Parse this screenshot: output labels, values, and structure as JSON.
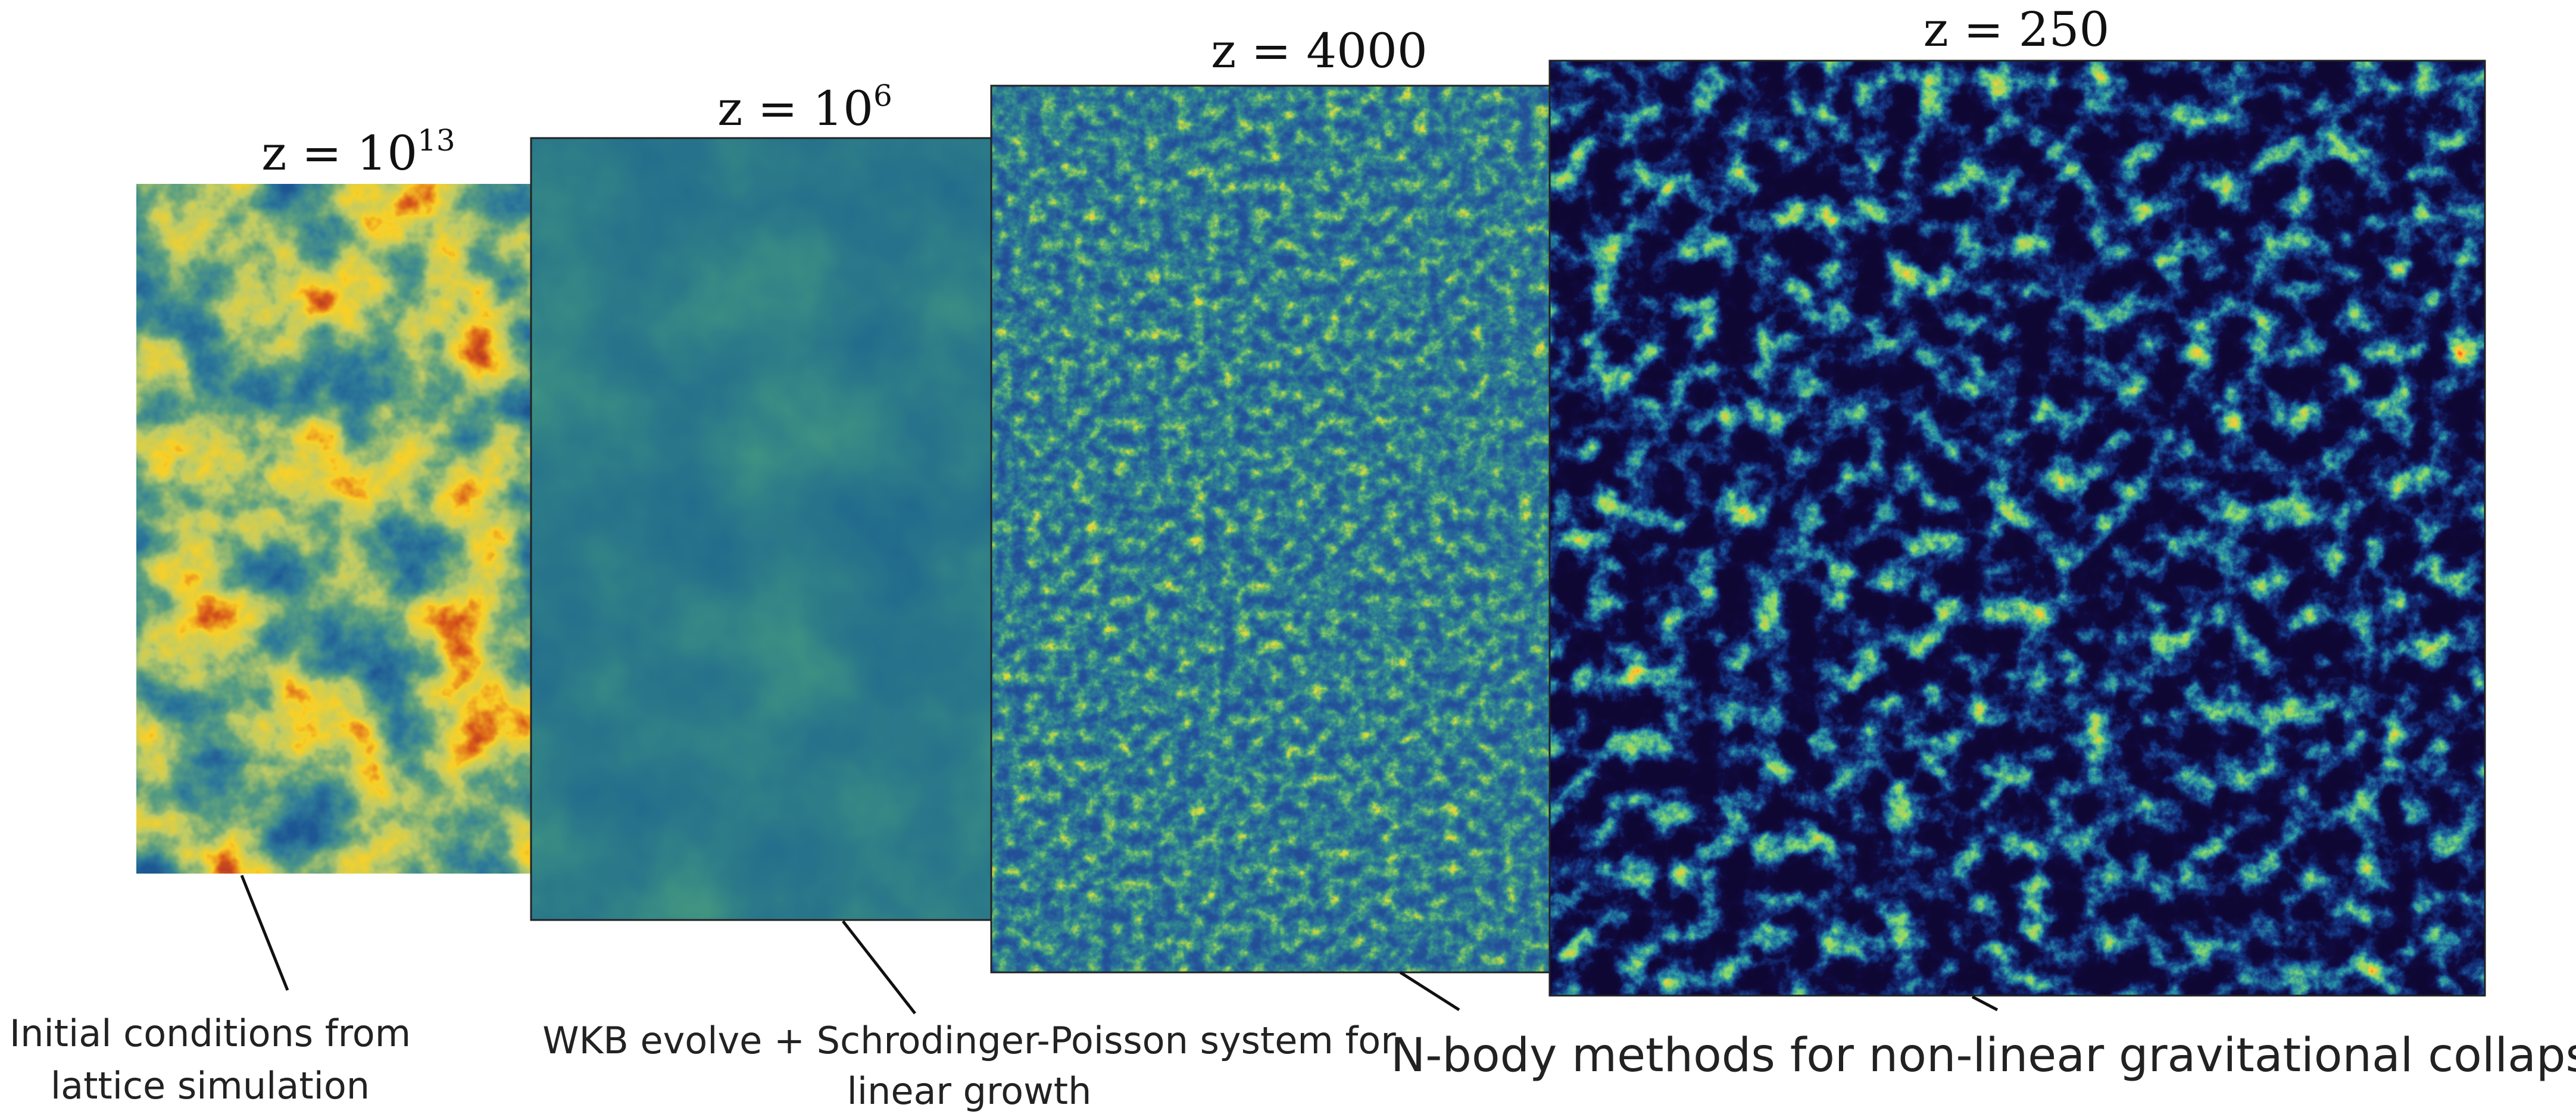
{
  "panels": [
    {
      "title": "z = 10",
      "title_superscript": "13"
    },
    {
      "title": "z = 10",
      "title_superscript": "6"
    },
    {
      "title": "z = 4000"
    },
    {
      "title": "z = 250"
    }
  ],
  "captions": [
    {
      "lines": [
        "Initial conditions from",
        "lattice simulation"
      ]
    },
    {
      "lines": [
        "WKB evolve + Schrodinger-Poisson system for",
        "linear growth"
      ]
    },
    {
      "lines": [
        "N-body methods for non-linear gravitational collapse"
      ]
    }
  ]
}
